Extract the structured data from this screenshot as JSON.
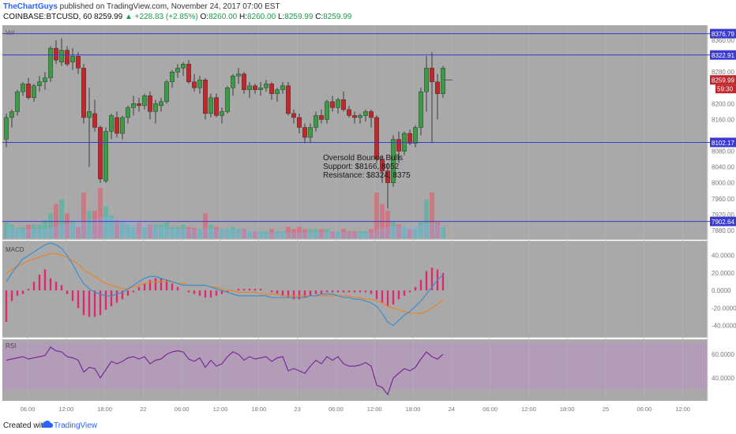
{
  "header": {
    "author": "TheChartGuys",
    "published": " published on TradingView.com, November 24, 2017 07:00 EST",
    "symbol": "COINBASE:BTCUSD, 60",
    "last": "8259.99",
    "change": "▲ +228.83 (+2.85%)",
    "o_label": "O:",
    "o_val": "8260.00",
    "h_label": "H:",
    "h_val": "8260.00",
    "l_label": "L:",
    "l_val": "8259.99",
    "c_label": "C:",
    "c_val": "8259.99"
  },
  "footer": {
    "created": "Created with",
    "brand": "TradingView"
  },
  "colors": {
    "up": "#3d9b47",
    "down": "#c0282d",
    "level": "#3b3bd4",
    "macd": "#3a8fd0",
    "signal": "#e8842a",
    "hist": "#e0286f",
    "rsi": "#7a2a9a",
    "vol_up": "#57b6a3",
    "vol_down": "#d96a7a",
    "vol_ma": "#8fb0e8",
    "panel": "#a9a9a9",
    "rsi_band": "#b49ab8"
  },
  "chart_data": [
    {
      "type": "candlestick",
      "title": "",
      "indicator_label": "Vol",
      "ylim": [
        7860,
        8390
      ],
      "y_ticks": [
        "8360.00",
        "8280.00",
        "8200.00",
        "8160.00",
        "8080.00",
        "8040.00",
        "8000.00",
        "7960.00",
        "7920.00",
        "7880.00"
      ],
      "y_tick_values": [
        8360,
        8280,
        8200,
        8160,
        8080,
        8040,
        8000,
        7960,
        7920,
        7880
      ],
      "x_tick_labels": [
        "06:00",
        "12:00",
        "18:00",
        "22",
        "06:00",
        "12:00",
        "18:00",
        "23",
        "06:00",
        "12:00",
        "18:00",
        "24",
        "06:00",
        "12:00",
        "18:00",
        "25",
        "06:00",
        "12:00"
      ],
      "levels": [
        {
          "value": 8376.79,
          "label": "8376.79"
        },
        {
          "value": 8322.91,
          "label": "8322.91"
        },
        {
          "value": 8102.17,
          "label": "8102.17"
        },
        {
          "value": 7902.64,
          "label": "7902.64"
        }
      ],
      "last_price_label": "8259.99",
      "countdown_label": "59:30",
      "annotation": [
        "Oversold Bounce Bulls",
        "Support: $8166, 8052",
        "Resistance: $8324, 8375"
      ],
      "ohlc": [
        [
          8110,
          8175,
          8090,
          8165
        ],
        [
          8165,
          8185,
          8140,
          8180
        ],
        [
          8180,
          8235,
          8170,
          8230
        ],
        [
          8230,
          8255,
          8220,
          8250
        ],
        [
          8250,
          8265,
          8210,
          8215
        ],
        [
          8215,
          8250,
          8205,
          8245
        ],
        [
          8245,
          8270,
          8230,
          8255
        ],
        [
          8255,
          8280,
          8235,
          8265
        ],
        [
          8265,
          8345,
          8255,
          8340
        ],
        [
          8340,
          8360,
          8300,
          8310
        ],
        [
          8305,
          8365,
          8295,
          8335
        ],
        [
          8335,
          8345,
          8295,
          8300
        ],
        [
          8305,
          8340,
          8285,
          8320
        ],
        [
          8320,
          8330,
          8275,
          8290
        ],
        [
          8290,
          8300,
          8150,
          8165
        ],
        [
          8165,
          8240,
          8040,
          8180
        ],
        [
          8175,
          8210,
          8130,
          8140
        ],
        [
          8140,
          8145,
          8000,
          8010
        ],
        [
          8005,
          8140,
          8000,
          8130
        ],
        [
          8130,
          8175,
          8110,
          8170
        ],
        [
          8165,
          8180,
          8115,
          8125
        ],
        [
          8125,
          8170,
          8110,
          8165
        ],
        [
          8165,
          8195,
          8150,
          8190
        ],
        [
          8190,
          8220,
          8170,
          8200
        ],
        [
          8200,
          8215,
          8180,
          8195
        ],
        [
          8195,
          8225,
          8185,
          8220
        ],
        [
          8220,
          8230,
          8160,
          8180
        ],
        [
          8180,
          8210,
          8150,
          8200
        ],
        [
          8195,
          8215,
          8180,
          8205
        ],
        [
          8205,
          8260,
          8200,
          8255
        ],
        [
          8255,
          8285,
          8240,
          8280
        ],
        [
          8280,
          8300,
          8265,
          8290
        ],
        [
          8290,
          8305,
          8270,
          8300
        ],
        [
          8300,
          8310,
          8250,
          8255
        ],
        [
          8255,
          8275,
          8230,
          8240
        ],
        [
          8240,
          8270,
          8225,
          8260
        ],
        [
          8260,
          8265,
          8160,
          8175
        ],
        [
          8175,
          8225,
          8165,
          8215
        ],
        [
          8215,
          8225,
          8165,
          8170
        ],
        [
          8170,
          8190,
          8150,
          8180
        ],
        [
          8180,
          8245,
          8175,
          8240
        ],
        [
          8240,
          8275,
          8220,
          8270
        ],
        [
          8270,
          8290,
          8250,
          8275
        ],
        [
          8275,
          8280,
          8225,
          8235
        ],
        [
          8235,
          8255,
          8215,
          8245
        ],
        [
          8245,
          8250,
          8225,
          8235
        ],
        [
          8235,
          8255,
          8220,
          8240
        ],
        [
          8240,
          8260,
          8230,
          8250
        ],
        [
          8250,
          8255,
          8210,
          8225
        ],
        [
          8225,
          8240,
          8205,
          8235
        ],
        [
          8235,
          8255,
          8225,
          8245
        ],
        [
          8245,
          8255,
          8170,
          8175
        ],
        [
          8175,
          8185,
          8150,
          8165
        ],
        [
          8165,
          8175,
          8125,
          8140
        ],
        [
          8140,
          8150,
          8100,
          8115
        ],
        [
          8115,
          8150,
          8100,
          8140
        ],
        [
          8140,
          8180,
          8130,
          8170
        ],
        [
          8170,
          8185,
          8150,
          8160
        ],
        [
          8160,
          8210,
          8150,
          8205
        ],
        [
          8205,
          8220,
          8180,
          8190
        ],
        [
          8190,
          8215,
          8175,
          8210
        ],
        [
          8210,
          8230,
          8180,
          8185
        ],
        [
          8185,
          8195,
          8165,
          8170
        ],
        [
          8170,
          8180,
          8150,
          8165
        ],
        [
          8165,
          8175,
          8150,
          8170
        ],
        [
          8170,
          8185,
          8155,
          8180
        ],
        [
          8180,
          8185,
          8140,
          8165
        ],
        [
          8165,
          8170,
          8050,
          8060
        ],
        [
          8060,
          8070,
          8000,
          8030
        ],
        [
          8030,
          8050,
          7935,
          8000
        ],
        [
          8000,
          8120,
          7990,
          8110
        ],
        [
          8110,
          8130,
          8050,
          8080
        ],
        [
          8080,
          8130,
          8070,
          8125
        ],
        [
          8125,
          8135,
          8095,
          8100
        ],
        [
          8100,
          8145,
          8090,
          8140
        ],
        [
          8140,
          8240,
          8120,
          8230
        ],
        [
          8230,
          8320,
          8180,
          8290
        ],
        [
          8290,
          8330,
          8100,
          8255
        ],
        [
          8255,
          8275,
          8160,
          8225
        ],
        [
          8225,
          8295,
          8215,
          8290
        ]
      ],
      "volume": [
        14,
        12,
        9,
        10,
        12,
        12,
        12,
        16,
        22,
        30,
        34,
        22,
        14,
        10,
        40,
        24,
        24,
        44,
        28,
        20,
        16,
        14,
        12,
        10,
        14,
        10,
        12,
        12,
        12,
        14,
        10,
        10,
        12,
        10,
        9,
        8,
        22,
        12,
        10,
        8,
        8,
        10,
        8,
        8,
        6,
        6,
        6,
        6,
        8,
        6,
        6,
        10,
        8,
        10,
        8,
        8,
        8,
        8,
        8,
        6,
        6,
        8,
        6,
        6,
        6,
        6,
        8,
        40,
        30,
        24,
        14,
        12,
        10,
        8,
        8,
        14,
        34,
        40,
        14,
        10
      ]
    },
    {
      "type": "line",
      "title": "",
      "indicator_label": "MACD",
      "ylim": [
        -52,
        55
      ],
      "y_ticks": [
        "40.0000",
        "20.0000",
        "0.0000",
        "-20.0000",
        "-40.0000"
      ],
      "y_tick_values": [
        40,
        20,
        0,
        -20,
        -40
      ],
      "series": [
        {
          "name": "",
          "kind": "histogram",
          "values": [
            -36,
            -12,
            -6,
            -4,
            2,
            10,
            18,
            24,
            14,
            10,
            6,
            -4,
            -12,
            -20,
            -28,
            -30,
            -30,
            -28,
            -22,
            -18,
            -14,
            -10,
            -6,
            -2,
            4,
            8,
            12,
            14,
            14,
            12,
            8,
            4,
            0,
            -2,
            -4,
            -6,
            -8,
            -8,
            -6,
            -4,
            -2,
            0,
            2,
            2,
            2,
            2,
            2,
            0,
            -2,
            -4,
            -6,
            -8,
            -10,
            -10,
            -8,
            -6,
            -4,
            -4,
            -2,
            -2,
            -2,
            -2,
            -2,
            -2,
            -2,
            -2,
            -4,
            -10,
            -14,
            -18,
            -16,
            -10,
            -6,
            -2,
            4,
            12,
            22,
            26,
            24,
            20
          ]
        },
        {
          "name": "",
          "kind": "line",
          "values": [
            10,
            20,
            28,
            36,
            40,
            44,
            48,
            52,
            54,
            52,
            48,
            40,
            30,
            18,
            8,
            2,
            -2,
            -4,
            -6,
            -6,
            -4,
            -2,
            2,
            6,
            10,
            14,
            16,
            16,
            14,
            12,
            10,
            8,
            6,
            6,
            6,
            6,
            6,
            4,
            2,
            0,
            -2,
            -4,
            -6,
            -6,
            -6,
            -6,
            -6,
            -6,
            -8,
            -8,
            -8,
            -8,
            -8,
            -8,
            -8,
            -6,
            -6,
            -4,
            -4,
            -4,
            -6,
            -8,
            -8,
            -10,
            -10,
            -12,
            -14,
            -18,
            -26,
            -36,
            -40,
            -34,
            -28,
            -24,
            -18,
            -12,
            -4,
            4,
            12,
            18
          ]
        },
        {
          "name": "",
          "kind": "line",
          "values": [
            20,
            24,
            28,
            30,
            34,
            36,
            38,
            40,
            42,
            42,
            40,
            38,
            34,
            30,
            24,
            20,
            16,
            12,
            8,
            6,
            4,
            2,
            2,
            4,
            6,
            8,
            10,
            10,
            10,
            10,
            10,
            8,
            8,
            6,
            6,
            6,
            6,
            4,
            4,
            2,
            0,
            0,
            -2,
            -2,
            -2,
            -2,
            -4,
            -4,
            -4,
            -4,
            -6,
            -6,
            -6,
            -6,
            -6,
            -6,
            -6,
            -6,
            -6,
            -6,
            -6,
            -6,
            -6,
            -8,
            -8,
            -10,
            -10,
            -12,
            -14,
            -18,
            -20,
            -22,
            -24,
            -26,
            -26,
            -26,
            -24,
            -20,
            -16,
            -10
          ]
        }
      ]
    },
    {
      "type": "line",
      "title": "",
      "indicator_label": "RSI",
      "ylim": [
        22,
        72
      ],
      "y_ticks": [
        "60.0000",
        "40.0000"
      ],
      "y_tick_values": [
        60,
        40
      ],
      "series": [
        {
          "name": "",
          "values": [
            55,
            56,
            57,
            58,
            56,
            57,
            58,
            59,
            66,
            63,
            62,
            58,
            57,
            55,
            45,
            49,
            48,
            40,
            47,
            54,
            52,
            54,
            57,
            58,
            56,
            58,
            52,
            55,
            56,
            60,
            62,
            63,
            62,
            56,
            54,
            57,
            49,
            55,
            50,
            52,
            58,
            62,
            60,
            55,
            58,
            56,
            57,
            58,
            54,
            57,
            58,
            46,
            48,
            46,
            44,
            50,
            55,
            52,
            58,
            55,
            58,
            52,
            50,
            50,
            51,
            53,
            50,
            34,
            32,
            26,
            40,
            44,
            48,
            46,
            49,
            56,
            62,
            58,
            56,
            60
          ]
        }
      ]
    }
  ]
}
